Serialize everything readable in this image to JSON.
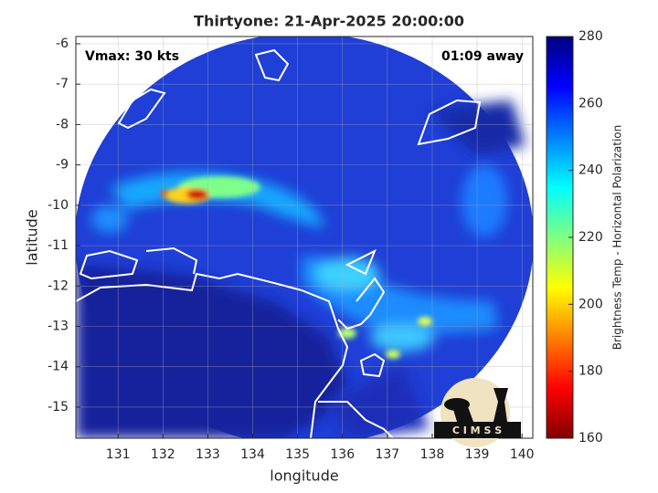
{
  "chart_data": {
    "type": "map",
    "title": "Thirtyone: 21-Apr-2025 20:00:00",
    "annotations": [
      "Vmax: 30 kts",
      "01:09 away"
    ],
    "x_label": "longitude",
    "y_label": "latitude",
    "xlim": [
      130.06,
      140.24
    ],
    "xticks": [
      131,
      132,
      133,
      134,
      135,
      136,
      137,
      138,
      139,
      140
    ],
    "ylim": [
      -15.77,
      -5.82
    ],
    "yticks": [
      -6,
      -7,
      -8,
      -9,
      -10,
      -11,
      -12,
      -13,
      -14,
      -15
    ],
    "grid": true,
    "colorbar": {
      "label": "Brightness Temp - Horizontal Polarization",
      "lim": [
        160,
        280
      ],
      "ticks": [
        160,
        180,
        200,
        220,
        240,
        260,
        280
      ]
    },
    "logo": "C I M S S"
  }
}
